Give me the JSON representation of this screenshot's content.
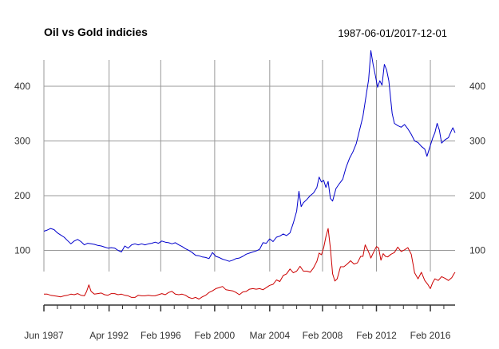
{
  "chart_data": {
    "type": "line",
    "title": "Oil vs Gold indicies",
    "subtitle": "1987-06-01/2017-12-01",
    "x_range": [
      "1987-06",
      "2017-12"
    ],
    "x_tick_labels": [
      {
        "date": "1987-06",
        "label": "Jun 1987"
      },
      {
        "date": "1992-04",
        "label": "Apr 1992"
      },
      {
        "date": "1996-02",
        "label": "Feb 1996"
      },
      {
        "date": "2000-02",
        "label": "Feb 2000"
      },
      {
        "date": "2004-03",
        "label": "Mar 2004"
      },
      {
        "date": "2008-02",
        "label": "Feb 2008"
      },
      {
        "date": "2012-02",
        "label": "Feb 2012"
      },
      {
        "date": "2016-02",
        "label": "Feb 2016"
      }
    ],
    "x_minor_ticks": [
      "1988-06",
      "1989-06",
      "1990-06",
      "1991-06",
      "1993-04",
      "1994-04",
      "1995-04",
      "1997-02",
      "1998-02",
      "1999-02",
      "2001-02",
      "2002-02",
      "2003-02",
      "2005-03",
      "2006-03",
      "2007-03",
      "2009-02",
      "2010-02",
      "2011-02",
      "2013-02",
      "2014-02",
      "2015-02",
      "2017-02"
    ],
    "y_ticks": [
      100,
      200,
      300,
      400
    ],
    "ylim": [
      0,
      470
    ],
    "grid": true,
    "colors": {
      "gold": "#0000cc",
      "oil": "#cc0000",
      "grid": "#999999",
      "axis": "#333333"
    },
    "series": [
      {
        "color": "#0000cc",
        "points": [
          [
            "1987-06",
            135
          ],
          [
            "1987-09",
            137
          ],
          [
            "1987-12",
            140
          ],
          [
            "1988-03",
            138
          ],
          [
            "1988-06",
            132
          ],
          [
            "1988-09",
            128
          ],
          [
            "1988-12",
            124
          ],
          [
            "1989-03",
            118
          ],
          [
            "1989-06",
            112
          ],
          [
            "1989-09",
            117
          ],
          [
            "1989-12",
            120
          ],
          [
            "1990-03",
            116
          ],
          [
            "1990-06",
            110
          ],
          [
            "1990-09",
            113
          ],
          [
            "1990-12",
            112
          ],
          [
            "1991-03",
            111
          ],
          [
            "1991-06",
            109
          ],
          [
            "1991-09",
            108
          ],
          [
            "1991-12",
            106
          ],
          [
            "1992-03",
            104
          ],
          [
            "1992-06",
            105
          ],
          [
            "1992-09",
            104
          ],
          [
            "1992-12",
            100
          ],
          [
            "1993-03",
            97
          ],
          [
            "1993-06",
            108
          ],
          [
            "1993-09",
            104
          ],
          [
            "1993-12",
            110
          ],
          [
            "1994-03",
            112
          ],
          [
            "1994-06",
            110
          ],
          [
            "1994-09",
            112
          ],
          [
            "1994-12",
            110
          ],
          [
            "1995-03",
            112
          ],
          [
            "1995-06",
            113
          ],
          [
            "1995-09",
            115
          ],
          [
            "1995-12",
            113
          ],
          [
            "1996-03",
            117
          ],
          [
            "1996-06",
            115
          ],
          [
            "1996-09",
            114
          ],
          [
            "1996-12",
            112
          ],
          [
            "1997-03",
            114
          ],
          [
            "1997-06",
            110
          ],
          [
            "1997-09",
            107
          ],
          [
            "1997-12",
            103
          ],
          [
            "1998-03",
            100
          ],
          [
            "1998-06",
            96
          ],
          [
            "1998-09",
            91
          ],
          [
            "1998-12",
            90
          ],
          [
            "1999-03",
            88
          ],
          [
            "1999-06",
            87
          ],
          [
            "1999-09",
            85
          ],
          [
            "1999-12",
            96
          ],
          [
            "2000-03",
            89
          ],
          [
            "2000-06",
            87
          ],
          [
            "2000-09",
            84
          ],
          [
            "2000-12",
            82
          ],
          [
            "2001-03",
            80
          ],
          [
            "2001-06",
            82
          ],
          [
            "2001-09",
            85
          ],
          [
            "2001-12",
            86
          ],
          [
            "2002-03",
            89
          ],
          [
            "2002-06",
            93
          ],
          [
            "2002-09",
            95
          ],
          [
            "2002-12",
            97
          ],
          [
            "2003-03",
            99
          ],
          [
            "2003-06",
            102
          ],
          [
            "2003-09",
            114
          ],
          [
            "2003-12",
            113
          ],
          [
            "2004-03",
            121
          ],
          [
            "2004-06",
            116
          ],
          [
            "2004-09",
            124
          ],
          [
            "2004-12",
            126
          ],
          [
            "2005-03",
            130
          ],
          [
            "2005-06",
            127
          ],
          [
            "2005-09",
            132
          ],
          [
            "2005-12",
            150
          ],
          [
            "2006-03",
            172
          ],
          [
            "2006-05",
            208
          ],
          [
            "2006-07",
            180
          ],
          [
            "2006-09",
            187
          ],
          [
            "2006-12",
            193
          ],
          [
            "2007-03",
            200
          ],
          [
            "2007-06",
            205
          ],
          [
            "2007-09",
            215
          ],
          [
            "2007-11",
            234
          ],
          [
            "2008-01",
            225
          ],
          [
            "2008-03",
            228
          ],
          [
            "2008-05",
            215
          ],
          [
            "2008-07",
            226
          ],
          [
            "2008-09",
            195
          ],
          [
            "2008-11",
            190
          ],
          [
            "2009-02",
            213
          ],
          [
            "2009-05",
            222
          ],
          [
            "2009-08",
            230
          ],
          [
            "2009-11",
            252
          ],
          [
            "2010-02",
            268
          ],
          [
            "2010-05",
            280
          ],
          [
            "2010-08",
            295
          ],
          [
            "2010-11",
            320
          ],
          [
            "2011-02",
            345
          ],
          [
            "2011-05",
            385
          ],
          [
            "2011-07",
            412
          ],
          [
            "2011-09",
            465
          ],
          [
            "2011-11",
            440
          ],
          [
            "2012-01",
            420
          ],
          [
            "2012-03",
            398
          ],
          [
            "2012-05",
            410
          ],
          [
            "2012-07",
            402
          ],
          [
            "2012-09",
            440
          ],
          [
            "2012-11",
            430
          ],
          [
            "2013-01",
            410
          ],
          [
            "2013-04",
            350
          ],
          [
            "2013-06",
            332
          ],
          [
            "2013-09",
            328
          ],
          [
            "2013-12",
            325
          ],
          [
            "2014-03",
            330
          ],
          [
            "2014-06",
            322
          ],
          [
            "2014-09",
            312
          ],
          [
            "2014-12",
            300
          ],
          [
            "2015-03",
            297
          ],
          [
            "2015-06",
            290
          ],
          [
            "2015-09",
            285
          ],
          [
            "2015-11",
            272
          ],
          [
            "2016-01",
            285
          ],
          [
            "2016-04",
            305
          ],
          [
            "2016-06",
            315
          ],
          [
            "2016-08",
            332
          ],
          [
            "2016-10",
            320
          ],
          [
            "2016-12",
            296
          ],
          [
            "2017-03",
            302
          ],
          [
            "2017-06",
            306
          ],
          [
            "2017-09",
            320
          ],
          [
            "2017-10",
            324
          ],
          [
            "2017-12",
            315
          ]
        ]
      },
      {
        "color": "#cc0000",
        "points": [
          [
            "1987-06",
            20
          ],
          [
            "1987-09",
            20
          ],
          [
            "1987-12",
            18
          ],
          [
            "1988-03",
            17
          ],
          [
            "1988-06",
            16
          ],
          [
            "1988-09",
            15
          ],
          [
            "1988-12",
            17
          ],
          [
            "1989-03",
            18
          ],
          [
            "1989-06",
            20
          ],
          [
            "1989-09",
            19
          ],
          [
            "1989-12",
            21
          ],
          [
            "1990-03",
            18
          ],
          [
            "1990-06",
            17
          ],
          [
            "1990-08",
            25
          ],
          [
            "1990-10",
            37
          ],
          [
            "1990-12",
            25
          ],
          [
            "1991-03",
            20
          ],
          [
            "1991-06",
            21
          ],
          [
            "1991-09",
            22
          ],
          [
            "1991-12",
            19
          ],
          [
            "1992-03",
            18
          ],
          [
            "1992-06",
            21
          ],
          [
            "1992-09",
            21
          ],
          [
            "1992-12",
            19
          ],
          [
            "1993-03",
            20
          ],
          [
            "1993-06",
            18
          ],
          [
            "1993-09",
            17
          ],
          [
            "1993-12",
            14
          ],
          [
            "1994-03",
            14
          ],
          [
            "1994-06",
            18
          ],
          [
            "1994-09",
            17
          ],
          [
            "1994-12",
            17
          ],
          [
            "1995-03",
            18
          ],
          [
            "1995-06",
            17
          ],
          [
            "1995-09",
            17
          ],
          [
            "1995-12",
            19
          ],
          [
            "1996-03",
            21
          ],
          [
            "1996-06",
            19
          ],
          [
            "1996-09",
            23
          ],
          [
            "1996-12",
            25
          ],
          [
            "1997-03",
            20
          ],
          [
            "1997-06",
            19
          ],
          [
            "1997-09",
            20
          ],
          [
            "1997-12",
            18
          ],
          [
            "1998-03",
            14
          ],
          [
            "1998-06",
            12
          ],
          [
            "1998-09",
            14
          ],
          [
            "1998-12",
            11
          ],
          [
            "1999-03",
            15
          ],
          [
            "1999-06",
            18
          ],
          [
            "1999-09",
            23
          ],
          [
            "1999-12",
            26
          ],
          [
            "2000-03",
            30
          ],
          [
            "2000-06",
            32
          ],
          [
            "2000-09",
            34
          ],
          [
            "2000-12",
            28
          ],
          [
            "2001-03",
            27
          ],
          [
            "2001-06",
            26
          ],
          [
            "2001-09",
            23
          ],
          [
            "2001-12",
            19
          ],
          [
            "2002-03",
            24
          ],
          [
            "2002-06",
            25
          ],
          [
            "2002-09",
            29
          ],
          [
            "2002-12",
            30
          ],
          [
            "2003-03",
            29
          ],
          [
            "2003-06",
            30
          ],
          [
            "2003-09",
            28
          ],
          [
            "2003-12",
            32
          ],
          [
            "2004-03",
            36
          ],
          [
            "2004-06",
            38
          ],
          [
            "2004-09",
            46
          ],
          [
            "2004-12",
            43
          ],
          [
            "2005-03",
            54
          ],
          [
            "2005-06",
            57
          ],
          [
            "2005-09",
            66
          ],
          [
            "2005-12",
            59
          ],
          [
            "2006-03",
            62
          ],
          [
            "2006-06",
            71
          ],
          [
            "2006-09",
            62
          ],
          [
            "2006-12",
            62
          ],
          [
            "2007-03",
            60
          ],
          [
            "2007-06",
            68
          ],
          [
            "2007-09",
            80
          ],
          [
            "2007-11",
            95
          ],
          [
            "2008-01",
            92
          ],
          [
            "2008-03",
            105
          ],
          [
            "2008-05",
            125
          ],
          [
            "2008-07",
            140
          ],
          [
            "2008-09",
            104
          ],
          [
            "2008-11",
            57
          ],
          [
            "2009-01",
            44
          ],
          [
            "2009-03",
            48
          ],
          [
            "2009-06",
            70
          ],
          [
            "2009-09",
            70
          ],
          [
            "2009-12",
            75
          ],
          [
            "2010-03",
            81
          ],
          [
            "2010-06",
            75
          ],
          [
            "2010-09",
            77
          ],
          [
            "2010-12",
            89
          ],
          [
            "2011-02",
            89
          ],
          [
            "2011-04",
            110
          ],
          [
            "2011-07",
            97
          ],
          [
            "2011-09",
            86
          ],
          [
            "2011-12",
            99
          ],
          [
            "2012-02",
            107
          ],
          [
            "2012-04",
            104
          ],
          [
            "2012-06",
            82
          ],
          [
            "2012-08",
            94
          ],
          [
            "2012-10",
            89
          ],
          [
            "2012-12",
            88
          ],
          [
            "2013-03",
            93
          ],
          [
            "2013-06",
            96
          ],
          [
            "2013-09",
            106
          ],
          [
            "2013-12",
            98
          ],
          [
            "2014-03",
            101
          ],
          [
            "2014-06",
            105
          ],
          [
            "2014-09",
            93
          ],
          [
            "2014-12",
            59
          ],
          [
            "2015-03",
            48
          ],
          [
            "2015-06",
            60
          ],
          [
            "2015-09",
            45
          ],
          [
            "2015-12",
            37
          ],
          [
            "2016-02",
            30
          ],
          [
            "2016-04",
            41
          ],
          [
            "2016-06",
            48
          ],
          [
            "2016-09",
            45
          ],
          [
            "2016-12",
            52
          ],
          [
            "2017-03",
            49
          ],
          [
            "2017-06",
            45
          ],
          [
            "2017-09",
            50
          ],
          [
            "2017-11",
            57
          ],
          [
            "2017-12",
            60
          ]
        ]
      }
    ]
  }
}
